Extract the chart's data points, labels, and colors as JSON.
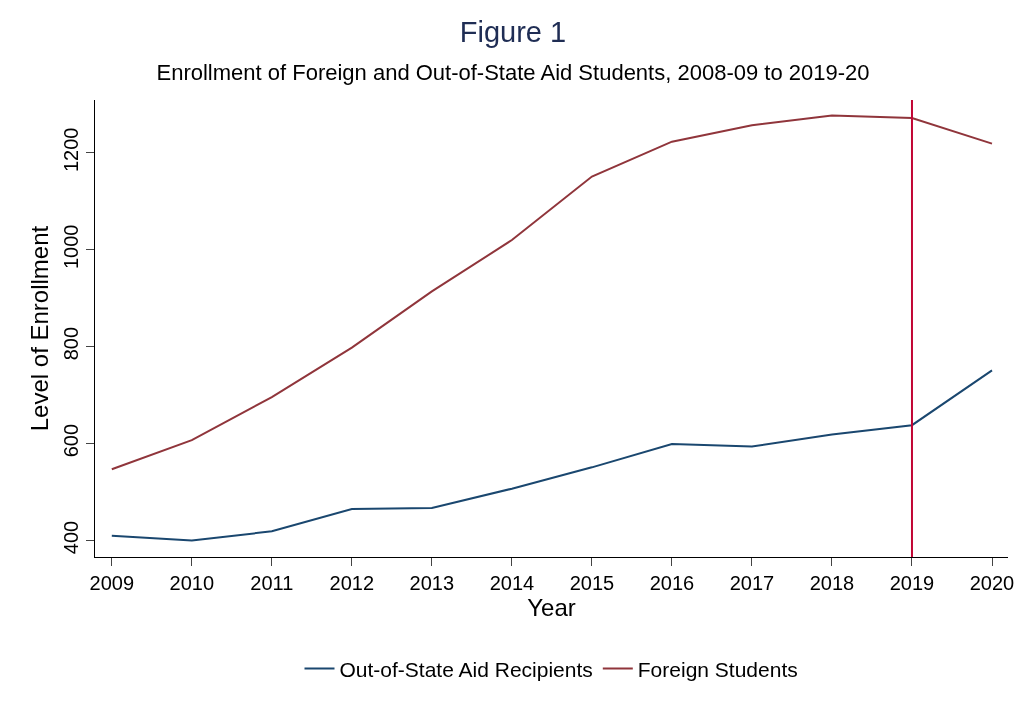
{
  "chart_data": {
    "type": "line",
    "title": "Figure 1",
    "subtitle": "Enrollment of Foreign and Out-of-State Aid Students, 2008-09 to 2019-20",
    "xlabel": "Year",
    "ylabel": "Level of Enrollment",
    "x": [
      2009,
      2010,
      2011,
      2012,
      2013,
      2014,
      2015,
      2016,
      2017,
      2018,
      2019,
      2020
    ],
    "series": [
      {
        "name": "Out-of-State Aid Recipients",
        "color": "#1a476f",
        "values": [
          410,
          400,
          419,
          465,
          467,
          507,
          551,
          599,
          594,
          619,
          638,
          751
        ]
      },
      {
        "name": "Foreign Students",
        "color": "#90353b",
        "values": [
          547,
          607,
          696,
          798,
          914,
          1020,
          1151,
          1223,
          1257,
          1277,
          1272,
          1219
        ]
      }
    ],
    "xlim": [
      2008.79,
      2020.2
    ],
    "xticks": [
      2009,
      2010,
      2011,
      2012,
      2013,
      2014,
      2015,
      2016,
      2017,
      2018,
      2019,
      2020
    ],
    "ylim": [
      366,
      1309
    ],
    "yticks": [
      400,
      600,
      800,
      1000,
      1200
    ],
    "ref_lines": [
      {
        "axis": "x",
        "value": 2019,
        "color": "#c10534"
      }
    ],
    "grid": false,
    "legend": "bottom",
    "marker": "none",
    "line_style": "solid"
  }
}
